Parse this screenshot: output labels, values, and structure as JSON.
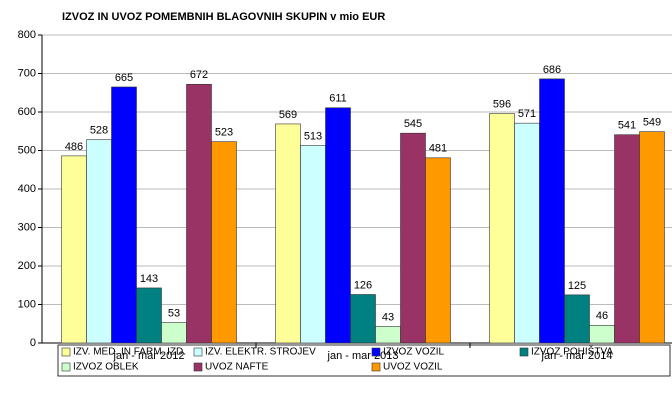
{
  "chart_data": {
    "type": "bar",
    "title": "IZVOZ IN UVOZ POMEMBNIH BLAGOVNIH SKUPIN v mio EUR",
    "categories": [
      "jan - mar 2012",
      "jan - mar 2013",
      "jan - mar 2014"
    ],
    "series": [
      {
        "name": "IZV. MED. IN FARM. IZD.",
        "color": "#ffff99",
        "values": [
          486,
          569,
          596
        ]
      },
      {
        "name": "IZV. ELEKTR. STROJEV",
        "color": "#ccffff",
        "values": [
          528,
          513,
          571
        ]
      },
      {
        "name": "IZVOZ VOZIL",
        "color": "#0000ff",
        "values": [
          665,
          611,
          686
        ]
      },
      {
        "name": "IZVOZ POHIŠTVA",
        "color": "#008080",
        "values": [
          143,
          126,
          125
        ]
      },
      {
        "name": "IZVOZ OBLEK",
        "color": "#ccffcc",
        "values": [
          53,
          43,
          46
        ]
      },
      {
        "name": "UVOZ NAFTE",
        "color": "#993366",
        "values": [
          672,
          545,
          541
        ]
      },
      {
        "name": "UVOZ VOZIL",
        "color": "#ff9900",
        "values": [
          523,
          481,
          549
        ]
      }
    ],
    "ylim": [
      0,
      800
    ],
    "yticks": [
      0,
      100,
      200,
      300,
      400,
      500,
      600,
      700,
      800
    ],
    "grid": true
  }
}
